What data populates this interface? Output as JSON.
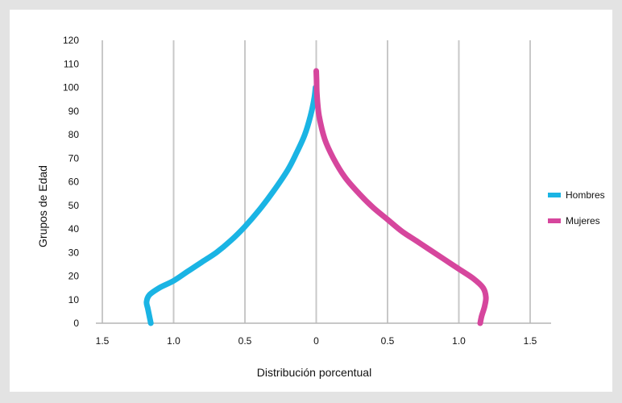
{
  "chart_data": {
    "type": "line",
    "title": "",
    "xlabel": "Distribución porcentual",
    "ylabel": "Grupos de Edad",
    "xlim": [
      -1.5,
      1.5
    ],
    "ylim": [
      0,
      120
    ],
    "x_ticks": [
      -1.5,
      -1.0,
      -0.5,
      0,
      0.5,
      1.0,
      1.5
    ],
    "x_tick_labels": [
      "1.5",
      "1.0",
      "0.5",
      "0",
      "0.5",
      "1.0",
      "1.5"
    ],
    "y_ticks": [
      0,
      10,
      20,
      30,
      40,
      50,
      60,
      70,
      80,
      90,
      100,
      110,
      120
    ],
    "grid": "vertical",
    "legend_position": "right",
    "series": [
      {
        "name": "Hombres",
        "color": "#1ab4e4",
        "points": [
          [
            -1.16,
            0
          ],
          [
            -1.17,
            3
          ],
          [
            -1.18,
            6
          ],
          [
            -1.19,
            9
          ],
          [
            -1.17,
            12
          ],
          [
            -1.1,
            15
          ],
          [
            -1.0,
            18
          ],
          [
            -0.9,
            22
          ],
          [
            -0.8,
            26
          ],
          [
            -0.7,
            30
          ],
          [
            -0.6,
            35
          ],
          [
            -0.5,
            41
          ],
          [
            -0.4,
            48
          ],
          [
            -0.3,
            56
          ],
          [
            -0.2,
            65
          ],
          [
            -0.14,
            72
          ],
          [
            -0.08,
            80
          ],
          [
            -0.04,
            88
          ],
          [
            -0.015,
            95
          ],
          [
            -0.005,
            100
          ]
        ]
      },
      {
        "name": "Mujeres",
        "color": "#d6469d",
        "points": [
          [
            0,
            107
          ],
          [
            0.002,
            103
          ],
          [
            0.005,
            97
          ],
          [
            0.02,
            88
          ],
          [
            0.06,
            78
          ],
          [
            0.12,
            70
          ],
          [
            0.2,
            62
          ],
          [
            0.3,
            55
          ],
          [
            0.4,
            49
          ],
          [
            0.5,
            44
          ],
          [
            0.6,
            39
          ],
          [
            0.7,
            35
          ],
          [
            0.8,
            31
          ],
          [
            0.9,
            27
          ],
          [
            1.0,
            23
          ],
          [
            1.1,
            19
          ],
          [
            1.17,
            15
          ],
          [
            1.19,
            11
          ],
          [
            1.18,
            7
          ],
          [
            1.16,
            3
          ],
          [
            1.15,
            0
          ]
        ]
      }
    ]
  }
}
